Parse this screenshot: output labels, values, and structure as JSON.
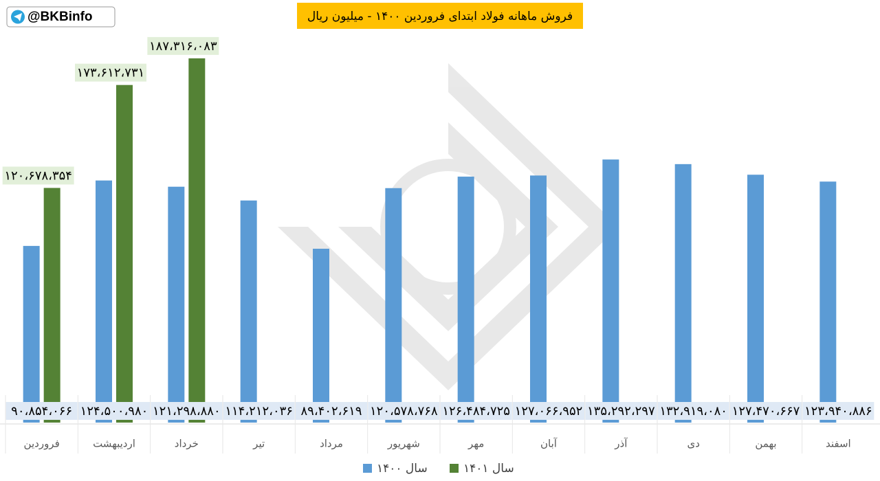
{
  "chart_data": {
    "type": "bar",
    "title": "فروش ماهانه فولاد ابتدای فروردین ۱۴۰۰ - میلیون ریال",
    "annotation": "@BKBinfo",
    "categories": [
      "فروردین",
      "اردیبهشت",
      "خرداد",
      "تیر",
      "مرداد",
      "شهریور",
      "مهر",
      "آبان",
      "آذر",
      "دی",
      "بهمن",
      "اسفند"
    ],
    "ylim": [
      0,
      200000000
    ],
    "series": [
      {
        "name": "سال ۱۴۰۰",
        "color": "#5b9bd5",
        "values": [
          90854066,
          124500980,
          121298880,
          114212036,
          89402619,
          120578768,
          126484725,
          127066952,
          135292297,
          132919080,
          127470667,
          123940886
        ],
        "value_labels": [
          "۹۰،۸۵۴،۰۶۶",
          "۱۲۴،۵۰۰،۹۸۰",
          "۱۲۱،۲۹۸،۸۸۰",
          "۱۱۴،۲۱۲،۰۳۶",
          "۸۹،۴۰۲،۶۱۹",
          "۱۲۰،۵۷۸،۷۶۸",
          "۱۲۶،۴۸۴،۷۲۵",
          "۱۲۷،۰۶۶،۹۵۲",
          "۱۳۵،۲۹۲،۲۹۷",
          "۱۳۲،۹۱۹،۰۸۰",
          "۱۲۷،۴۷۰،۶۶۷",
          "۱۲۳،۹۴۰،۸۸۶"
        ]
      },
      {
        "name": "سال ۱۴۰۱",
        "color": "#548235",
        "values": [
          120678354,
          173612731,
          187316083,
          null,
          null,
          null,
          null,
          null,
          null,
          null,
          null,
          null
        ],
        "value_labels": [
          "۱۲۰،۶۷۸،۳۵۴",
          "۱۷۳،۶۱۲،۷۳۱",
          "۱۸۷،۳۱۶،۰۸۳",
          null,
          null,
          null,
          null,
          null,
          null,
          null,
          null,
          null
        ]
      }
    ],
    "legend": "bottom"
  }
}
